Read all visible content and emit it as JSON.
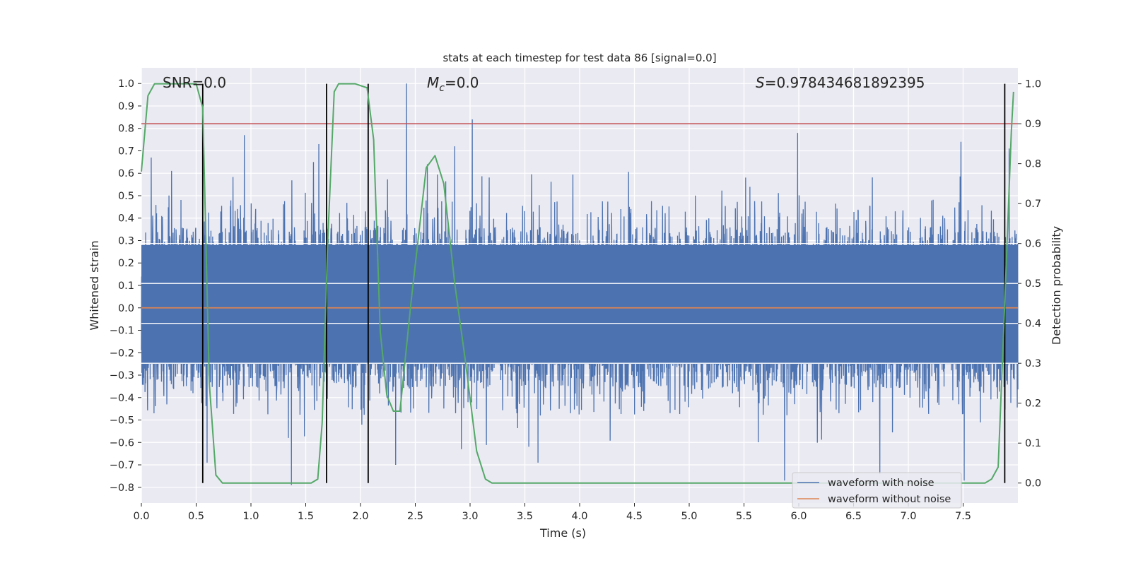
{
  "chart_data": {
    "type": "line",
    "title": "stats at each timestep for test data 86 [signal=0.0]",
    "xlabel": "Time (s)",
    "ylabel": "Whitened strain",
    "y2label": "Detection probability",
    "xlim": [
      0.0,
      8.0
    ],
    "ylim": [
      -0.87,
      1.07
    ],
    "y2lim": [
      -0.05,
      1.04
    ],
    "grid": true,
    "x_ticks": [
      0.0,
      0.5,
      1.0,
      1.5,
      2.0,
      2.5,
      3.0,
      3.5,
      4.0,
      4.5,
      5.0,
      5.5,
      6.0,
      6.5,
      7.0,
      7.5
    ],
    "x_tick_labels": [
      "0.0",
      "0.5",
      "1.0",
      "1.5",
      "2.0",
      "2.5",
      "3.0",
      "3.5",
      "4.0",
      "4.5",
      "5.0",
      "5.5",
      "6.0",
      "6.5",
      "7.0",
      "7.5"
    ],
    "y_ticks": [
      1.0,
      0.9,
      0.8,
      0.7,
      0.6,
      0.5,
      0.4,
      0.3,
      0.2,
      0.1,
      0.0,
      -0.1,
      -0.2,
      -0.3,
      -0.4,
      -0.5,
      -0.6,
      -0.7,
      -0.8
    ],
    "y_tick_labels": [
      "1.0",
      "0.9",
      "0.8",
      "0.7",
      "0.6",
      "0.5",
      "0.4",
      "0.3",
      "0.2",
      "0.1",
      "0.0",
      "−0.1",
      "−0.2",
      "−0.3",
      "−0.4",
      "−0.5",
      "−0.6",
      "−0.7",
      "−0.8"
    ],
    "y2_ticks": [
      1.0,
      0.9,
      0.8,
      0.7,
      0.6,
      0.5,
      0.4,
      0.3,
      0.2,
      0.1,
      0.0
    ],
    "y2_tick_labels": [
      "1.0",
      "0.9",
      "0.8",
      "0.7",
      "0.6",
      "0.5",
      "0.4",
      "0.3",
      "0.2",
      "0.1",
      "0.0"
    ],
    "annotations": {
      "snr": "SNR=0.0",
      "mc_symbol": "M",
      "mc_sub": "c",
      "mc_value": "=0.0",
      "s_symbol": "S",
      "s_value": "=0.978434681892395"
    },
    "legend": {
      "position": "lower-right",
      "entries": [
        {
          "label": "waveform with noise",
          "color": "#4c72b0"
        },
        {
          "label": "waveform without noise",
          "color": "#dd8452"
        }
      ]
    },
    "noise_waveform": {
      "name": "waveform with noise",
      "color": "#4c72b0",
      "samples": 4096,
      "typical_envelope_upper": 0.28,
      "typical_envelope_lower": -0.25,
      "peaks": [
        {
          "t": 0.09,
          "v": 0.67
        },
        {
          "t": 0.94,
          "v": 0.77
        },
        {
          "t": 1.57,
          "v": 0.65
        },
        {
          "t": 1.62,
          "v": 0.73
        },
        {
          "t": 2.42,
          "v": 1.0
        },
        {
          "t": 2.61,
          "v": 0.64
        },
        {
          "t": 2.86,
          "v": 0.72
        },
        {
          "t": 3.02,
          "v": 0.84
        },
        {
          "t": 5.99,
          "v": 0.78
        },
        {
          "t": 7.48,
          "v": 0.74
        },
        {
          "t": 7.92,
          "v": 0.71
        },
        {
          "t": 1.37,
          "v": -0.79
        },
        {
          "t": 2.32,
          "v": -0.7
        },
        {
          "t": 3.62,
          "v": -0.69
        },
        {
          "t": 5.87,
          "v": -0.77
        },
        {
          "t": 6.74,
          "v": -0.74
        },
        {
          "t": 7.51,
          "v": -0.77
        },
        {
          "t": 0.6,
          "v": -0.69
        },
        {
          "t": 2.92,
          "v": -0.63
        }
      ]
    },
    "clean_waveform": {
      "name": "waveform without noise",
      "color": "#dd8452",
      "value": 0.0
    },
    "detection_probability": {
      "color": "#55a868",
      "points": [
        [
          0.0,
          0.78
        ],
        [
          0.06,
          0.97
        ],
        [
          0.12,
          1.0
        ],
        [
          0.3,
          1.0
        ],
        [
          0.5,
          1.0
        ],
        [
          0.56,
          0.94
        ],
        [
          0.62,
          0.25
        ],
        [
          0.68,
          0.02
        ],
        [
          0.74,
          0.0
        ],
        [
          1.0,
          0.0
        ],
        [
          1.3,
          0.0
        ],
        [
          1.55,
          0.0
        ],
        [
          1.61,
          0.01
        ],
        [
          1.65,
          0.15
        ],
        [
          1.7,
          0.6
        ],
        [
          1.76,
          0.98
        ],
        [
          1.8,
          1.0
        ],
        [
          1.95,
          1.0
        ],
        [
          2.06,
          0.99
        ],
        [
          2.12,
          0.86
        ],
        [
          2.18,
          0.38
        ],
        [
          2.24,
          0.22
        ],
        [
          2.3,
          0.18
        ],
        [
          2.36,
          0.18
        ],
        [
          2.46,
          0.45
        ],
        [
          2.6,
          0.79
        ],
        [
          2.68,
          0.82
        ],
        [
          2.76,
          0.75
        ],
        [
          2.86,
          0.5
        ],
        [
          2.96,
          0.3
        ],
        [
          3.06,
          0.08
        ],
        [
          3.14,
          0.01
        ],
        [
          3.2,
          0.0
        ],
        [
          4.0,
          0.0
        ],
        [
          5.0,
          0.0
        ],
        [
          6.0,
          0.0
        ],
        [
          7.0,
          0.0
        ],
        [
          7.7,
          0.0
        ],
        [
          7.76,
          0.01
        ],
        [
          7.82,
          0.04
        ],
        [
          7.88,
          0.45
        ],
        [
          7.94,
          0.88
        ],
        [
          7.96,
          0.98
        ]
      ]
    },
    "threshold": {
      "value": 0.9,
      "axis": "detection_probability",
      "color": "#c44e52"
    },
    "event_markers": {
      "color": "#000000",
      "times": [
        0.56,
        1.69,
        2.07,
        7.88
      ]
    }
  }
}
